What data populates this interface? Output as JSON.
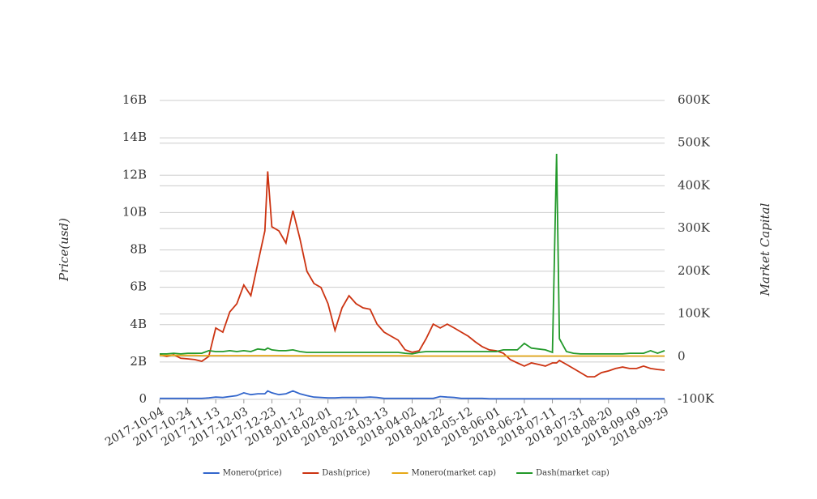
{
  "chart_data": {
    "type": "line",
    "x": [
      "2017-10-04",
      "2017-10-09",
      "2017-10-14",
      "2017-10-19",
      "2017-10-24",
      "2017-10-29",
      "2017-11-03",
      "2017-11-08",
      "2017-11-13",
      "2017-11-18",
      "2017-11-23",
      "2017-11-28",
      "2017-12-03",
      "2017-12-08",
      "2017-12-13",
      "2017-12-18",
      "2017-12-20",
      "2017-12-23",
      "2017-12-28",
      "2018-01-02",
      "2018-01-07",
      "2018-01-12",
      "2018-01-17",
      "2018-01-22",
      "2018-01-27",
      "2018-02-01",
      "2018-02-06",
      "2018-02-11",
      "2018-02-16",
      "2018-02-21",
      "2018-02-26",
      "2018-03-03",
      "2018-03-08",
      "2018-03-13",
      "2018-03-18",
      "2018-03-23",
      "2018-03-28",
      "2018-04-02",
      "2018-04-07",
      "2018-04-12",
      "2018-04-17",
      "2018-04-22",
      "2018-04-27",
      "2018-05-02",
      "2018-05-07",
      "2018-05-12",
      "2018-05-17",
      "2018-05-22",
      "2018-05-27",
      "2018-06-01",
      "2018-06-06",
      "2018-06-11",
      "2018-06-16",
      "2018-06-21",
      "2018-06-26",
      "2018-07-01",
      "2018-07-06",
      "2018-07-11",
      "2018-07-14",
      "2018-07-16",
      "2018-07-21",
      "2018-07-26",
      "2018-07-31",
      "2018-08-05",
      "2018-08-10",
      "2018-08-15",
      "2018-08-20",
      "2018-08-25",
      "2018-08-30",
      "2018-09-04",
      "2018-09-09",
      "2018-09-14",
      "2018-09-19",
      "2018-09-24",
      "2018-09-29"
    ],
    "xlim": [
      "2017-10-04",
      "2018-09-29"
    ],
    "xticks": [
      "2017-10-04",
      "2017-10-24",
      "2017-11-13",
      "2017-12-03",
      "2017-12-23",
      "2018-01-12",
      "2018-02-01",
      "2018-02-21",
      "2018-03-13",
      "2018-04-02",
      "2018-04-22",
      "2018-05-12",
      "2018-06-01",
      "2018-06-21",
      "2018-07-11",
      "2018-07-31",
      "2018-08-20",
      "2018-09-09",
      "2018-09-29"
    ],
    "ylabel": "Price(usd)",
    "y2label": "Market Capital",
    "ylim": [
      0,
      16000000000
    ],
    "yticks": [
      0,
      {
        "value": 2000000000,
        "label": "2B"
      },
      {
        "value": 4000000000,
        "label": "4B"
      },
      {
        "value": 6000000000,
        "label": "6B"
      },
      {
        "value": 8000000000,
        "label": "8B"
      },
      {
        "value": 10000000000,
        "label": "10B"
      },
      {
        "value": 12000000000,
        "label": "12B"
      },
      {
        "value": 14000000000,
        "label": "14B"
      },
      {
        "value": 16000000000,
        "label": "16B"
      }
    ],
    "y2lim": [
      -100000,
      600000
    ],
    "y2ticks": [
      {
        "value": -100000,
        "label": "-100K"
      },
      0,
      {
        "value": 100000,
        "label": "100K"
      },
      {
        "value": 200000,
        "label": "200K"
      },
      {
        "value": 300000,
        "label": "300K"
      },
      {
        "value": 400000,
        "label": "400K"
      },
      {
        "value": 500000,
        "label": "500K"
      },
      {
        "value": 600000,
        "label": "600K"
      }
    ],
    "grid": true,
    "legend": "bottom",
    "series": [
      {
        "name": "Monero(price)",
        "color": "#3366cc",
        "axis": "y",
        "values": [
          50000000,
          50000000,
          50000000,
          50000000,
          50000000,
          50000000,
          50000000,
          80000000,
          120000000,
          100000000,
          150000000,
          200000000,
          350000000,
          250000000,
          300000000,
          300000000,
          450000000,
          350000000,
          250000000,
          300000000,
          450000000,
          300000000,
          200000000,
          120000000,
          100000000,
          80000000,
          80000000,
          100000000,
          100000000,
          100000000,
          100000000,
          120000000,
          100000000,
          50000000,
          50000000,
          50000000,
          50000000,
          50000000,
          50000000,
          50000000,
          50000000,
          150000000,
          120000000,
          100000000,
          50000000,
          50000000,
          50000000,
          50000000,
          30000000,
          30000000,
          30000000,
          30000000,
          30000000,
          30000000,
          30000000,
          30000000,
          30000000,
          30000000,
          30000000,
          30000000,
          30000000,
          30000000,
          30000000,
          30000000,
          30000000,
          30000000,
          30000000,
          30000000,
          30000000,
          30000000,
          30000000,
          30000000,
          30000000,
          30000000,
          30000000
        ]
      },
      {
        "name": "Dash(price)",
        "color": "#cc3311",
        "axis": "y",
        "values": [
          2390000000,
          2300000000,
          2390000000,
          2200000000,
          2170000000,
          2130000000,
          2040000000,
          2300000000,
          3820000000,
          3600000000,
          4680000000,
          5120000000,
          6120000000,
          5550000000,
          7290000000,
          9020000000,
          12200000000,
          9240000000,
          9020000000,
          8370000000,
          10100000000,
          8590000000,
          6850000000,
          6200000000,
          5990000000,
          5120000000,
          3690000000,
          4900000000,
          5550000000,
          5120000000,
          4900000000,
          4820000000,
          4030000000,
          3600000000,
          3380000000,
          3170000000,
          2650000000,
          2520000000,
          2600000000,
          3250000000,
          4030000000,
          3820000000,
          4030000000,
          3820000000,
          3600000000,
          3380000000,
          3080000000,
          2820000000,
          2650000000,
          2600000000,
          2470000000,
          2130000000,
          1950000000,
          1780000000,
          1950000000,
          1870000000,
          1780000000,
          1950000000,
          1950000000,
          2080000000,
          1870000000,
          1650000000,
          1430000000,
          1210000000,
          1210000000,
          1430000000,
          1520000000,
          1650000000,
          1730000000,
          1650000000,
          1650000000,
          1780000000,
          1650000000,
          1600000000,
          1560000000
        ]
      },
      {
        "name": "Monero(market cap)",
        "color": "#e6a817",
        "axis": "y2",
        "values": [
          3000,
          3000,
          3000,
          3000,
          3000,
          3000,
          2500,
          2500,
          2500,
          2500,
          2500,
          2500,
          2500,
          2500,
          2500,
          2500,
          2500,
          2500,
          2500,
          2000,
          2000,
          2000,
          2000,
          2000,
          2000,
          2000,
          2000,
          2000,
          2000,
          2000,
          2000,
          2000,
          2000,
          2000,
          2000,
          2000,
          2000,
          1500,
          1500,
          1500,
          1500,
          1500,
          1500,
          1500,
          1500,
          1500,
          1500,
          1500,
          1500,
          1500,
          1500,
          1500,
          1500,
          1500,
          1500,
          1500,
          1500,
          1500,
          1500,
          1500,
          1500,
          1500,
          1500,
          1500,
          1500,
          1500,
          1500,
          1500,
          1500,
          1500,
          1500,
          1500,
          1500,
          1500,
          1500
        ]
      },
      {
        "name": "Dash(market cap)",
        "color": "#22992a",
        "axis": "y2",
        "values": [
          6500,
          6500,
          8000,
          6500,
          8000,
          8000,
          8000,
          14000,
          12000,
          12000,
          14000,
          12000,
          14000,
          12000,
          18000,
          16000,
          20000,
          16000,
          14000,
          14000,
          16000,
          12000,
          10000,
          10000,
          10000,
          10000,
          10000,
          10000,
          10000,
          10000,
          10000,
          10000,
          10000,
          10000,
          10000,
          10000,
          8000,
          6500,
          10000,
          12000,
          12000,
          12000,
          12000,
          12000,
          12000,
          12000,
          12000,
          12000,
          12000,
          12000,
          16000,
          16000,
          16000,
          31000,
          20000,
          18000,
          16000,
          10000,
          475000,
          42000,
          12000,
          8000,
          6500,
          6500,
          6500,
          6500,
          6500,
          6500,
          6500,
          8000,
          8000,
          8000,
          14000,
          8000,
          14000
        ]
      }
    ]
  }
}
